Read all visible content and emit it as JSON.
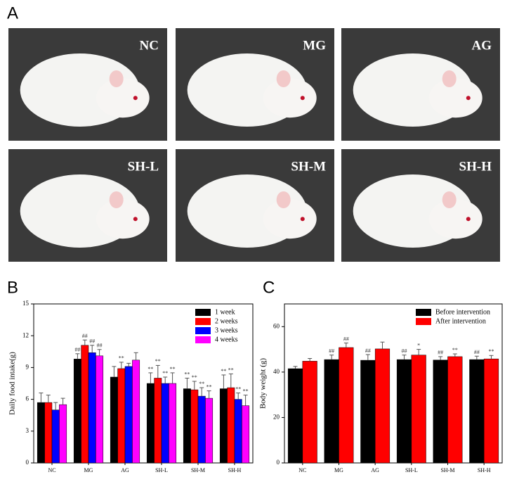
{
  "panel_labels": [
    "A",
    "B",
    "C"
  ],
  "photos": [
    "NC",
    "MG",
    "AG",
    "SH-L",
    "SH-M",
    "SH-H"
  ],
  "chart_data": [
    {
      "type": "bar",
      "y_label": "Daily food intake(g)",
      "categories": [
        "NC",
        "MG",
        "AG",
        "SH-L",
        "SH-M",
        "SH-H"
      ],
      "ylim": [
        0,
        15
      ],
      "yticks": [
        0,
        3,
        6,
        9,
        12,
        15
      ],
      "series": [
        {
          "name": "1 week",
          "color": "#000000",
          "values": [
            5.7,
            9.8,
            8.1,
            7.5,
            7.0,
            7.0
          ],
          "errors": [
            0.9,
            0.5,
            1.0,
            1.0,
            1.0,
            1.3
          ],
          "annotations": [
            null,
            "##",
            null,
            "**",
            "**",
            "**"
          ]
        },
        {
          "name": "2 weeks",
          "color": "#ff0000",
          "values": [
            5.7,
            11.1,
            8.9,
            8.0,
            6.9,
            7.1
          ],
          "errors": [
            0.7,
            0.5,
            0.6,
            1.2,
            0.8,
            1.3
          ],
          "annotations": [
            null,
            "##",
            "**",
            "**",
            "**",
            "**"
          ]
        },
        {
          "name": "3 weeks",
          "color": "#0000ff",
          "values": [
            5.0,
            10.4,
            9.1,
            7.5,
            6.3,
            6.0
          ],
          "errors": [
            0.7,
            0.7,
            0.3,
            0.6,
            0.8,
            0.6
          ],
          "annotations": [
            null,
            "##",
            null,
            "**",
            "**",
            "**"
          ]
        },
        {
          "name": "4 weeks",
          "color": "#ff00ff",
          "values": [
            5.5,
            10.1,
            9.7,
            7.5,
            6.1,
            5.4
          ],
          "errors": [
            0.6,
            0.6,
            0.7,
            1.0,
            0.7,
            1.0
          ],
          "annotations": [
            null,
            "##",
            null,
            "**",
            "**",
            "**"
          ]
        }
      ]
    },
    {
      "type": "bar",
      "y_label": "Body weight (g)",
      "categories": [
        "NC",
        "MG",
        "AG",
        "SH-L",
        "SH-M",
        "SH-H"
      ],
      "ylim": [
        0,
        70
      ],
      "yticks": [
        0,
        20,
        40,
        60
      ],
      "series": [
        {
          "name": "Before intervention",
          "color": "#000000",
          "values": [
            41.5,
            45.5,
            45.2,
            45.5,
            45.3,
            45.5
          ],
          "errors": [
            1.0,
            2.0,
            2.5,
            2.0,
            1.5,
            1.5
          ],
          "annotations": [
            null,
            "##",
            "##",
            "##",
            "##",
            "##"
          ]
        },
        {
          "name": "After intervention",
          "color": "#ff0000",
          "values": [
            44.8,
            50.8,
            50.2,
            47.5,
            46.8,
            45.8
          ],
          "errors": [
            1.2,
            2.0,
            3.0,
            2.5,
            1.2,
            1.5
          ],
          "annotations": [
            null,
            "##",
            null,
            "*",
            "**",
            "**"
          ]
        }
      ]
    }
  ]
}
